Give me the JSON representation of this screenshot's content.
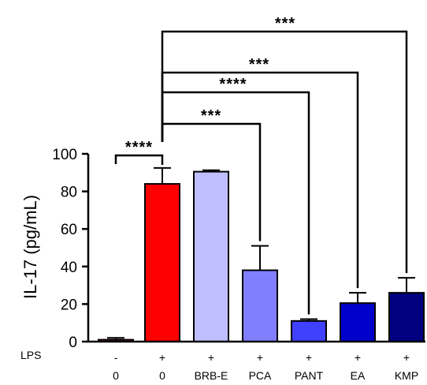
{
  "chart_data": {
    "type": "bar",
    "ylabel": "IL-17 (pg/mL)",
    "ylim": [
      0,
      100
    ],
    "yticks": [
      0,
      20,
      40,
      60,
      80,
      100
    ],
    "row_label": "LPS",
    "categories": [
      "0",
      "0",
      "BRB-E",
      "PCA",
      "PANT",
      "EA",
      "KMP"
    ],
    "lps": [
      "-",
      "+",
      "+",
      "+",
      "+",
      "+",
      "+"
    ],
    "values": [
      1,
      84,
      90.5,
      38,
      11,
      20.5,
      26
    ],
    "errors": [
      1,
      8.5,
      0.8,
      13,
      1,
      5.5,
      8
    ],
    "colors": [
      "#ff0000",
      "#ff0000",
      "#bfbfff",
      "#8080ff",
      "#4040ff",
      "#0000cc",
      "#000080"
    ],
    "comparisons": [
      {
        "from": 0,
        "to": 1,
        "label": "****"
      },
      {
        "from": 1,
        "to": 3,
        "label": "***"
      },
      {
        "from": 1,
        "to": 4,
        "label": "****"
      },
      {
        "from": 1,
        "to": 5,
        "label": "***"
      },
      {
        "from": 1,
        "to": 6,
        "label": "***"
      }
    ]
  }
}
